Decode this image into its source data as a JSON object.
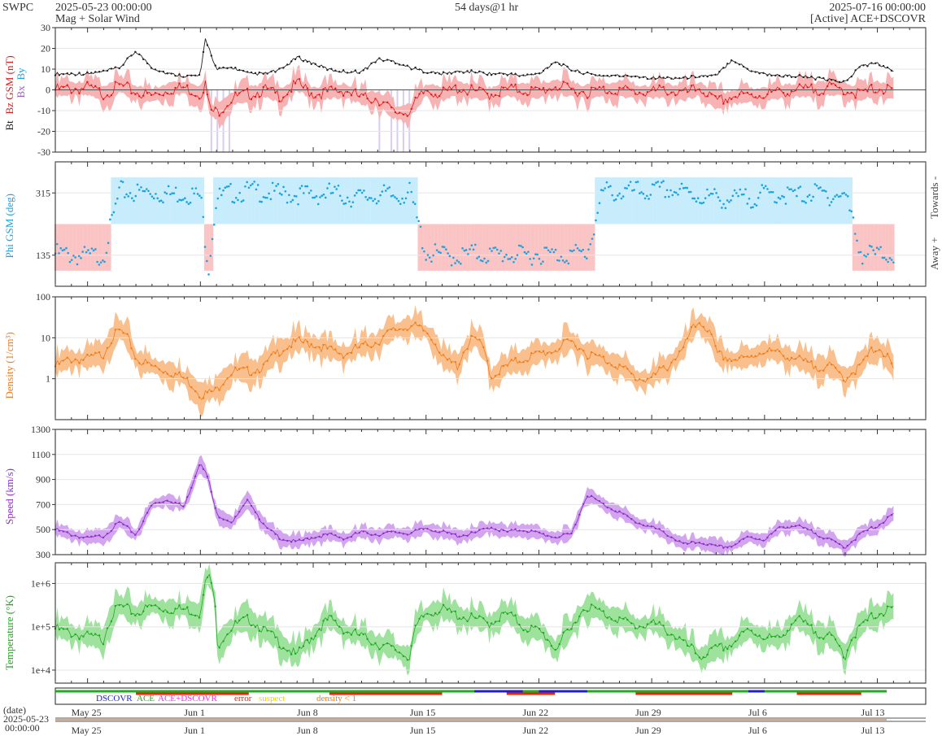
{
  "header": {
    "org": "SWPC",
    "start": "2025-05-23 00:00:00",
    "product": "Mag + Solar Wind",
    "span": "54 days@1 hr",
    "end": "2025-07-16 00:00:00",
    "source": "[Active] ACE+DSCOVR"
  },
  "colors": {
    "bt": "#222222",
    "bz": "#e31a1c",
    "phi": "#1aa3e0",
    "towards_bg": "#c7ecfb",
    "away_bg": "#fbc4c4",
    "density": "#f07d1b",
    "density_band": "#f9bf8d",
    "speed": "#8b2fc9",
    "speed_band": "#d3a5ee",
    "temperature": "#1fa81f",
    "temperature_band": "#9ee29e",
    "bz_south_bg": "#d8cdee",
    "dscovr": "#1f1fcf",
    "ace": "#22aa22",
    "ace_dscovr": "#ff22ff",
    "error": "#ee2200",
    "suspect": "#ffcc00",
    "density_lt1": "#ff7700"
  },
  "x_axis": {
    "start_day": "2025-05-23",
    "days": 54,
    "ticks": [
      {
        "label": "May 25",
        "day": 2
      },
      {
        "label": "Jun 1",
        "day": 9
      },
      {
        "label": "Jun 8",
        "day": 16
      },
      {
        "label": "Jun 15",
        "day": 23
      },
      {
        "label": "Jun 22",
        "day": 30
      },
      {
        "label": "Jun 29",
        "day": 37
      },
      {
        "label": "Jul 6",
        "day": 44
      },
      {
        "label": "Jul 13",
        "day": 51
      }
    ],
    "date_caption": "(date)",
    "bottom_date": "2025-05-23",
    "bottom_time": "00:00:00"
  },
  "chart_data": [
    {
      "type": "line",
      "panel": "mag",
      "ylabel_bt": "Bt",
      "ylabel_bz": "Bz GSM (nT)",
      "ylabel_bx": "Bx",
      "ylabel_by": "By",
      "ylim": [
        -30,
        30
      ],
      "yticks": [
        -30,
        -20,
        -10,
        0,
        10,
        20,
        30
      ],
      "series": [
        {
          "name": "Bt",
          "x_days": [
            0,
            2,
            3,
            4,
            5,
            6,
            7,
            8,
            9,
            9.3,
            9.6,
            10,
            11,
            12,
            13,
            14,
            15,
            16,
            17,
            18,
            19,
            20,
            21,
            22,
            23,
            24,
            25,
            26,
            27,
            28,
            29,
            30,
            31,
            32,
            33,
            34,
            35,
            36,
            37,
            38,
            39,
            40,
            41,
            42,
            43,
            44,
            45,
            46,
            47,
            48,
            49,
            50,
            51,
            52
          ],
          "values": [
            7,
            7,
            8,
            10,
            18,
            10,
            7,
            6,
            6,
            24,
            18,
            9,
            10,
            7,
            7,
            9,
            15,
            12,
            9,
            8,
            8,
            14,
            13,
            10,
            8,
            7,
            8,
            8,
            7,
            7,
            6,
            7,
            13,
            9,
            7,
            6,
            6,
            6,
            5,
            5,
            5,
            6,
            6,
            14,
            9,
            7,
            6,
            6,
            5,
            4,
            3,
            11,
            12,
            8
          ]
        },
        {
          "name": "Bz",
          "x_days": [
            0,
            2,
            3,
            4,
            5,
            6,
            7,
            8,
            9,
            9.3,
            9.6,
            10,
            11,
            12,
            13,
            14,
            15,
            16,
            17,
            18,
            19,
            20,
            21,
            22,
            23,
            24,
            25,
            26,
            27,
            28,
            29,
            30,
            31,
            32,
            33,
            34,
            35,
            36,
            37,
            38,
            39,
            40,
            41,
            42,
            43,
            44,
            45,
            46,
            47,
            48,
            49,
            50,
            51,
            52
          ],
          "values": [
            0,
            1,
            -2,
            2,
            -1,
            -3,
            0,
            1,
            -2,
            3,
            -10,
            -11,
            -4,
            -2,
            0,
            -3,
            3,
            -2,
            -1,
            0,
            -4,
            -4,
            -11,
            -10,
            0,
            -2,
            1,
            -1,
            -2,
            0,
            0,
            -1,
            2,
            0,
            -1,
            0,
            0,
            -1,
            -1,
            0,
            -2,
            1,
            -6,
            -3,
            -3,
            -2,
            -1,
            0,
            0,
            1,
            0,
            -2,
            1,
            -1
          ]
        }
      ]
    },
    {
      "type": "scatter",
      "panel": "phi",
      "ylabel": "Phi GSM (deg)",
      "ylim": [
        45,
        405
      ],
      "yticks": [
        135,
        315
      ],
      "side_labels": {
        "towards": "Towards -",
        "away": "Away +"
      },
      "x_days": [
        0,
        1,
        2,
        3,
        4,
        5,
        6,
        7,
        8,
        9,
        9.5,
        10,
        11,
        12,
        13,
        14,
        15,
        16,
        17,
        18,
        19,
        20,
        21,
        22,
        23,
        24,
        25,
        26,
        27,
        28,
        29,
        30,
        31,
        32,
        33,
        34,
        35,
        36,
        37,
        38,
        39,
        40,
        41,
        42,
        43,
        44,
        45,
        46,
        47,
        48,
        49,
        50,
        51,
        52
      ],
      "values": [
        140,
        135,
        130,
        135,
        320,
        315,
        318,
        310,
        315,
        305,
        100,
        300,
        315,
        320,
        318,
        310,
        312,
        308,
        315,
        305,
        300,
        310,
        305,
        315,
        140,
        135,
        130,
        140,
        135,
        138,
        132,
        140,
        135,
        138,
        140,
        320,
        315,
        320,
        318,
        325,
        315,
        305,
        300,
        295,
        300,
        310,
        312,
        305,
        315,
        308,
        312,
        140,
        135,
        140
      ]
    },
    {
      "type": "line",
      "panel": "density",
      "ylabel": "Density (1/cm³)",
      "scale": "log",
      "ylim": [
        0.1,
        100
      ],
      "yticks": [
        1,
        10,
        100
      ],
      "x_days": [
        0,
        1,
        2,
        3,
        4,
        5,
        6,
        7,
        8,
        9,
        10,
        11,
        12,
        13,
        14,
        15,
        16,
        17,
        18,
        19,
        20,
        21,
        22,
        23,
        24,
        25,
        26,
        27,
        28,
        29,
        30,
        31,
        32,
        33,
        34,
        35,
        36,
        37,
        38,
        39,
        40,
        41,
        42,
        43,
        44,
        45,
        46,
        47,
        48,
        49,
        50,
        51,
        52
      ],
      "values": [
        2,
        3,
        3,
        4,
        15,
        3,
        2,
        1.5,
        1,
        0.4,
        0.5,
        1.5,
        1.5,
        2,
        5,
        8,
        7,
        5,
        4,
        6,
        8,
        15,
        20,
        14,
        3,
        2,
        10,
        1,
        2,
        3,
        4,
        5,
        8,
        4,
        3,
        2,
        1,
        1,
        2,
        5,
        25,
        4,
        3,
        3,
        5,
        4,
        3,
        2,
        2,
        1,
        2,
        6,
        1.5
      ]
    },
    {
      "type": "line",
      "panel": "speed",
      "ylabel": "Speed (km/s)",
      "ylim": [
        300,
        1300
      ],
      "yticks": [
        300,
        500,
        700,
        900,
        1100,
        1300
      ],
      "x_days": [
        0,
        1,
        2,
        3,
        4,
        5,
        6,
        7,
        8,
        9,
        9.5,
        10,
        11,
        12,
        13,
        14,
        15,
        16,
        17,
        18,
        19,
        20,
        21,
        22,
        23,
        24,
        25,
        26,
        27,
        28,
        29,
        30,
        31,
        32,
        33,
        34,
        35,
        36,
        37,
        38,
        39,
        40,
        41,
        42,
        43,
        44,
        45,
        46,
        47,
        48,
        49,
        50,
        51,
        52
      ],
      "values": [
        500,
        460,
        430,
        450,
        560,
        460,
        700,
        740,
        680,
        1050,
        900,
        620,
        560,
        740,
        520,
        430,
        400,
        440,
        460,
        430,
        480,
        460,
        480,
        470,
        510,
        480,
        450,
        470,
        520,
        480,
        500,
        470,
        440,
        460,
        780,
        700,
        640,
        560,
        520,
        460,
        380,
        400,
        360,
        370,
        440,
        420,
        520,
        530,
        480,
        420,
        360,
        470,
        530,
        620
      ]
    },
    {
      "type": "line",
      "panel": "temperature",
      "ylabel": "Temperature (°K)",
      "scale": "log",
      "ylim": [
        5000,
        3000000
      ],
      "ytick_labels": [
        "1e+4",
        "1e+5",
        "1e+6"
      ],
      "ytick_values": [
        10000,
        100000,
        1000000
      ],
      "x_days": [
        0,
        1,
        2,
        3,
        4,
        5,
        6,
        7,
        8,
        9,
        9.5,
        10,
        11,
        12,
        13,
        14,
        15,
        16,
        17,
        18,
        19,
        20,
        21,
        22,
        23,
        24,
        25,
        26,
        27,
        28,
        29,
        30,
        31,
        32,
        33,
        34,
        35,
        36,
        37,
        38,
        39,
        40,
        41,
        42,
        43,
        44,
        45,
        46,
        47,
        48,
        49,
        50,
        51,
        52
      ],
      "values": [
        90000,
        70000,
        60000,
        50000,
        300000,
        200000,
        300000,
        250000,
        250000,
        200000,
        1500000,
        30000,
        100000,
        150000,
        80000,
        40000,
        20000,
        60000,
        150000,
        80000,
        60000,
        40000,
        30000,
        20000,
        200000,
        250000,
        180000,
        150000,
        120000,
        200000,
        100000,
        80000,
        30000,
        80000,
        300000,
        200000,
        150000,
        100000,
        120000,
        80000,
        40000,
        20000,
        30000,
        40000,
        80000,
        60000,
        50000,
        150000,
        80000,
        60000,
        20000,
        100000,
        200000,
        250000
      ]
    }
  ],
  "source_legend": [
    "DSCOVR",
    "ACE",
    "ACE+DSCOVR",
    "error",
    "suspect",
    "density < 1"
  ]
}
